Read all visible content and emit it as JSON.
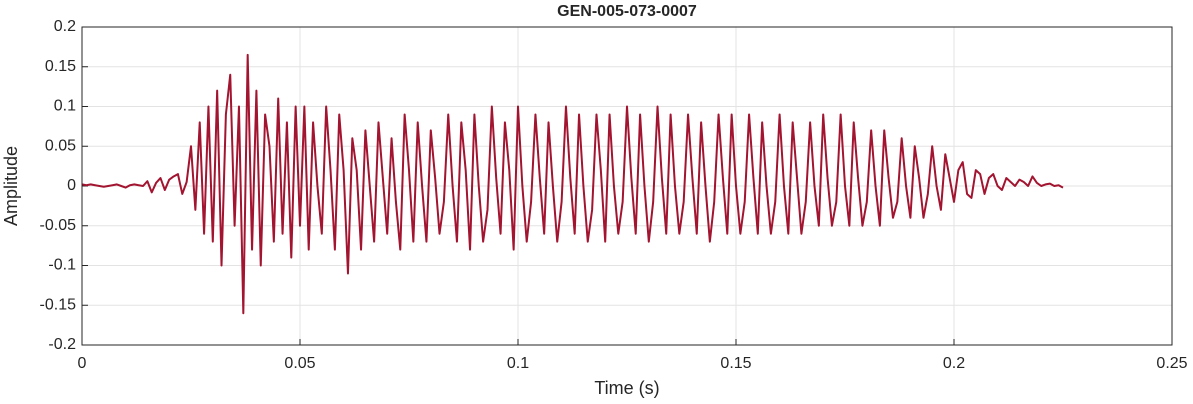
{
  "chart_data": {
    "type": "line",
    "title": "GEN-005-073-0007",
    "x_label": "Time (s)",
    "y_label": "Amplitude",
    "color": "#a2142f",
    "grid": true,
    "xlim": [
      0,
      0.25
    ],
    "xticks": [
      0,
      0.05,
      0.1,
      0.15,
      0.2,
      0.25
    ],
    "ylim": [
      -0.2,
      0.2
    ],
    "yticks": [
      -0.2,
      -0.15,
      -0.1,
      -0.05,
      0,
      0.05,
      0.1,
      0.15,
      0.2
    ],
    "x": [
      0,
      0.001,
      0.002,
      0.003,
      0.004,
      0.005,
      0.006,
      0.007,
      0.008,
      0.009,
      0.01,
      0.011,
      0.012,
      0.013,
      0.014,
      0.015,
      0.016,
      0.017,
      0.018,
      0.019,
      0.02,
      0.021,
      0.022,
      0.023,
      0.024,
      0.025,
      0.026,
      0.027,
      0.028,
      0.029,
      0.03,
      0.031,
      0.032,
      0.033,
      0.034,
      0.035,
      0.036,
      0.037,
      0.038,
      0.039,
      0.04,
      0.041,
      0.042,
      0.043,
      0.044,
      0.045,
      0.046,
      0.047,
      0.048,
      0.049,
      0.05,
      0.051,
      0.052,
      0.053,
      0.054,
      0.055,
      0.056,
      0.057,
      0.058,
      0.059,
      0.06,
      0.061,
      0.062,
      0.063,
      0.064,
      0.065,
      0.066,
      0.067,
      0.068,
      0.069,
      0.07,
      0.071,
      0.072,
      0.073,
      0.074,
      0.075,
      0.076,
      0.077,
      0.078,
      0.079,
      0.08,
      0.081,
      0.082,
      0.083,
      0.084,
      0.085,
      0.086,
      0.087,
      0.088,
      0.089,
      0.09,
      0.091,
      0.092,
      0.093,
      0.094,
      0.095,
      0.096,
      0.097,
      0.098,
      0.099,
      0.1,
      0.101,
      0.102,
      0.103,
      0.104,
      0.105,
      0.106,
      0.107,
      0.108,
      0.109,
      0.11,
      0.111,
      0.112,
      0.113,
      0.114,
      0.115,
      0.116,
      0.117,
      0.118,
      0.119,
      0.12,
      0.121,
      0.122,
      0.123,
      0.124,
      0.125,
      0.126,
      0.127,
      0.128,
      0.129,
      0.13,
      0.131,
      0.132,
      0.133,
      0.134,
      0.135,
      0.136,
      0.137,
      0.138,
      0.139,
      0.14,
      0.141,
      0.142,
      0.143,
      0.144,
      0.145,
      0.146,
      0.147,
      0.148,
      0.149,
      0.15,
      0.151,
      0.152,
      0.153,
      0.154,
      0.155,
      0.156,
      0.157,
      0.158,
      0.159,
      0.16,
      0.161,
      0.162,
      0.163,
      0.164,
      0.165,
      0.166,
      0.167,
      0.168,
      0.169,
      0.17,
      0.171,
      0.172,
      0.173,
      0.174,
      0.175,
      0.176,
      0.177,
      0.178,
      0.179,
      0.18,
      0.181,
      0.182,
      0.183,
      0.184,
      0.185,
      0.186,
      0.187,
      0.188,
      0.189,
      0.19,
      0.191,
      0.192,
      0.193,
      0.194,
      0.195,
      0.196,
      0.197,
      0.198,
      0.199,
      0.2,
      0.201,
      0.202,
      0.203,
      0.204,
      0.205,
      0.206,
      0.207,
      0.208,
      0.209,
      0.21,
      0.211,
      0.212,
      0.213,
      0.214,
      0.215,
      0.216,
      0.217,
      0.218,
      0.219,
      0.22,
      0.221,
      0.222,
      0.223,
      0.224,
      0.225
    ],
    "values": [
      0.002,
      0.001,
      0.002,
      0.001,
      0,
      -0.001,
      0,
      0.001,
      0.002,
      0,
      -0.002,
      0.001,
      0.002,
      0.001,
      0,
      0.006,
      -0.008,
      0.004,
      0.01,
      -0.005,
      0.008,
      0.012,
      0.015,
      -0.01,
      0.005,
      0.05,
      -0.03,
      0.08,
      -0.06,
      0.1,
      -0.07,
      0.12,
      -0.1,
      0.09,
      0.14,
      -0.05,
      0.1,
      -0.16,
      0.165,
      -0.08,
      0.12,
      -0.1,
      0.09,
      0.05,
      -0.07,
      0.11,
      -0.06,
      0.08,
      -0.09,
      0.1,
      -0.05,
      0.1,
      -0.08,
      0.08,
      0,
      -0.06,
      0.1,
      0.02,
      -0.08,
      0.09,
      0.02,
      -0.11,
      0.06,
      0.02,
      -0.08,
      0.07,
      0,
      -0.07,
      0.08,
      0.01,
      -0.06,
      0.06,
      -0.02,
      -0.08,
      0.09,
      0.02,
      -0.07,
      0.08,
      0,
      -0.07,
      0.07,
      0.01,
      -0.06,
      -0.02,
      0.09,
      0,
      -0.07,
      0.08,
      0.02,
      -0.08,
      0.09,
      0,
      -0.07,
      -0.03,
      0.1,
      0.01,
      -0.06,
      0.08,
      0.02,
      -0.08,
      0.1,
      0,
      -0.07,
      -0.02,
      0.09,
      0.01,
      -0.06,
      0.08,
      0,
      -0.07,
      -0.02,
      0.1,
      0.01,
      -0.06,
      0.09,
      0,
      -0.07,
      -0.03,
      0.09,
      0.02,
      -0.07,
      0.09,
      0,
      -0.06,
      -0.02,
      0.1,
      0.01,
      -0.06,
      0.09,
      0,
      -0.07,
      -0.02,
      0.1,
      0.01,
      -0.06,
      0.09,
      0,
      -0.06,
      -0.02,
      0.09,
      0.01,
      -0.06,
      0.08,
      0,
      -0.07,
      -0.02,
      0.09,
      0.01,
      -0.06,
      0.09,
      0,
      -0.06,
      -0.02,
      0.09,
      0.01,
      -0.06,
      0.08,
      0,
      -0.06,
      -0.02,
      0.09,
      0,
      -0.06,
      0.08,
      0.01,
      -0.06,
      -0.02,
      0.08,
      0,
      -0.05,
      0.09,
      0.01,
      -0.05,
      -0.02,
      0.09,
      0,
      -0.05,
      0.08,
      0.01,
      -0.05,
      -0.02,
      0.07,
      0,
      -0.05,
      0.07,
      0.01,
      -0.04,
      -0.02,
      0.06,
      0,
      -0.04,
      0.05,
      0.01,
      -0.04,
      -0.01,
      0.05,
      0,
      -0.03,
      0.04,
      0.01,
      -0.02,
      0.02,
      0.03,
      -0.01,
      -0.015,
      0.02,
      0.015,
      -0.01,
      0.01,
      0.015,
      0,
      -0.005,
      0.01,
      0.005,
      0,
      0.008,
      0.005,
      0,
      0.012,
      0.004,
      0,
      0.002,
      0.003,
      0,
      0.001,
      -0.002
    ]
  }
}
